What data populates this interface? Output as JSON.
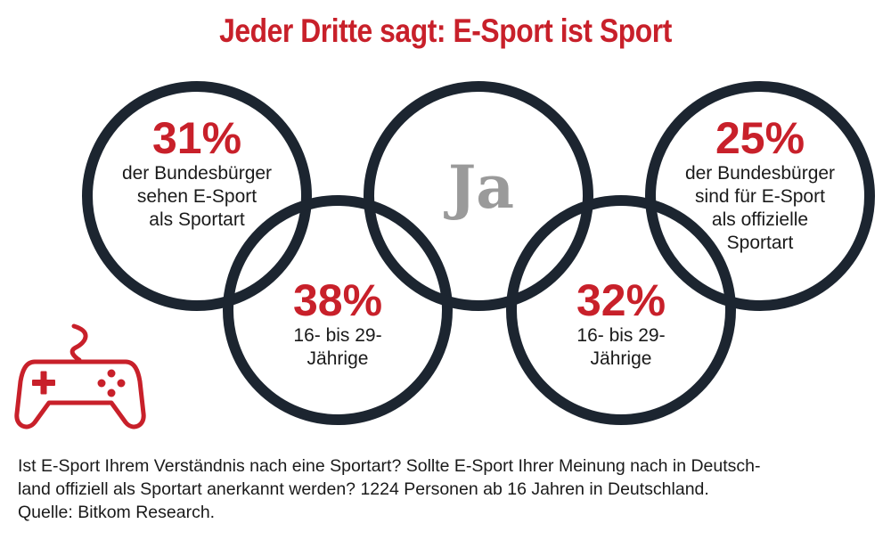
{
  "title": "Jeder Dritte sagt: E-Sport ist Sport",
  "center_label": "Ja",
  "stats": [
    {
      "value": "31%",
      "text": [
        "der Bundesbürger",
        "sehen E-Sport",
        "als Sportart"
      ]
    },
    {
      "value": "38%",
      "text": [
        "16- bis 29-",
        "Jährige"
      ]
    },
    {
      "value": "32%",
      "text": [
        "16- bis 29-",
        "Jährige"
      ]
    },
    {
      "value": "25%",
      "text": [
        "der Bundesbürger",
        "sind für E-Sport",
        "als offizielle",
        "Sportart"
      ]
    }
  ],
  "footnote": [
    "Ist E-Sport Ihrem Verständnis nach eine Sportart? Sollte E-Sport Ihrer Meinung nach in Deutsch-",
    "land offiziell als Sportart anerkannt werden? 1224 Personen ab 16 Jahren in Deutschland.",
    "Quelle: Bitkom Research."
  ],
  "icons": [
    "gamepad-icon"
  ],
  "colors": {
    "accent": "#c8202a",
    "ring": "#1c2530",
    "center_text": "#9a9a9a"
  },
  "chart_data": {
    "type": "table",
    "title": "Jeder Dritte sagt: E-Sport ist Sport",
    "center_label": "Ja",
    "rows": [
      {
        "value": 31,
        "unit": "%",
        "label": "der Bundesbürger sehen E-Sport als Sportart"
      },
      {
        "value": 38,
        "unit": "%",
        "label": "16- bis 29-Jährige"
      },
      {
        "value": 32,
        "unit": "%",
        "label": "16- bis 29-Jährige"
      },
      {
        "value": 25,
        "unit": "%",
        "label": "der Bundesbürger sind für E-Sport als offizielle Sportart"
      }
    ]
  }
}
